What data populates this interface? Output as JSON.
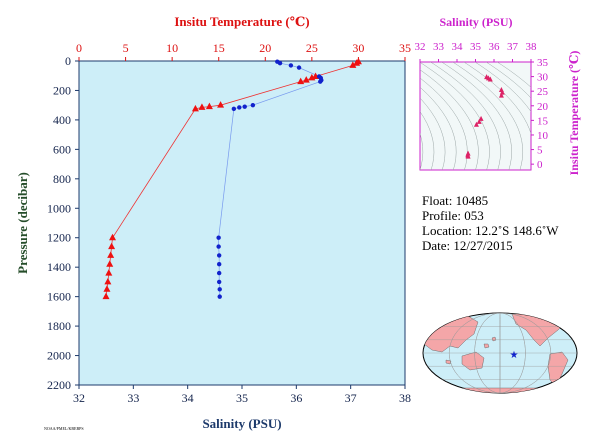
{
  "chart_data": [
    {
      "type": "scatter",
      "top_axis_label": "Insitu Temperature (℃)",
      "bottom_axis_label": "Salinity (PSU)",
      "left_axis_label": "Pressure (decibar)",
      "temperature_ticks": [
        "0",
        "5",
        "10",
        "15",
        "20",
        "25",
        "30",
        "35"
      ],
      "temperature_range": [
        0,
        35
      ],
      "salinity_ticks": [
        "32",
        "33",
        "34",
        "35",
        "36",
        "37",
        "38"
      ],
      "salinity_range": [
        32,
        38
      ],
      "pressure_ticks": [
        "0",
        "200",
        "400",
        "600",
        "800",
        "1000",
        "1200",
        "1400",
        "1600",
        "1800",
        "2000",
        "2200"
      ],
      "pressure_range": [
        0,
        2200
      ],
      "grid": false,
      "series": [
        {
          "marker": "triangle",
          "color": "#ee1111",
          "points": [
            {
              "p": 5,
              "v": 30.0
            },
            {
              "p": 15,
              "v": 29.8
            },
            {
              "p": 30,
              "v": 29.4
            },
            {
              "p": 105,
              "v": 25.4
            },
            {
              "p": 115,
              "v": 25.0
            },
            {
              "p": 130,
              "v": 24.4
            },
            {
              "p": 140,
              "v": 23.8
            },
            {
              "p": 300,
              "v": 15.2
            },
            {
              "p": 310,
              "v": 14.0
            },
            {
              "p": 315,
              "v": 13.2
            },
            {
              "p": 325,
              "v": 12.5
            },
            {
              "p": 1200,
              "v": 3.6
            },
            {
              "p": 1260,
              "v": 3.5
            },
            {
              "p": 1320,
              "v": 3.4
            },
            {
              "p": 1380,
              "v": 3.3
            },
            {
              "p": 1440,
              "v": 3.2
            },
            {
              "p": 1500,
              "v": 3.1
            },
            {
              "p": 1550,
              "v": 3.0
            },
            {
              "p": 1600,
              "v": 2.9
            }
          ]
        },
        {
          "marker": "circle",
          "color": "#1122cc",
          "points": [
            {
              "p": 5,
              "v": 35.65
            },
            {
              "p": 15,
              "v": 35.7
            },
            {
              "p": 30,
              "v": 35.9
            },
            {
              "p": 45,
              "v": 36.05
            },
            {
              "p": 105,
              "v": 36.42
            },
            {
              "p": 115,
              "v": 36.45
            },
            {
              "p": 130,
              "v": 36.46
            },
            {
              "p": 140,
              "v": 36.44
            },
            {
              "p": 300,
              "v": 35.2
            },
            {
              "p": 310,
              "v": 35.05
            },
            {
              "p": 315,
              "v": 34.95
            },
            {
              "p": 325,
              "v": 34.85
            },
            {
              "p": 1200,
              "v": 34.57
            },
            {
              "p": 1260,
              "v": 34.57
            },
            {
              "p": 1320,
              "v": 34.58
            },
            {
              "p": 1380,
              "v": 34.58
            },
            {
              "p": 1440,
              "v": 34.58
            },
            {
              "p": 1500,
              "v": 34.58
            },
            {
              "p": 1550,
              "v": 34.59
            },
            {
              "p": 1600,
              "v": 34.59
            }
          ]
        }
      ]
    },
    {
      "type": "scatter",
      "top_axis_label": "Salinity (PSU)",
      "right_axis_label": "Insitu Temperature (℃)",
      "salinity_ticks": [
        "32",
        "33",
        "34",
        "35",
        "36",
        "37",
        "38"
      ],
      "salinity_range": [
        32,
        38
      ],
      "temperature_ticks": [
        "0",
        "5",
        "10",
        "15",
        "20",
        "25",
        "30",
        "35"
      ],
      "temperature_range": [
        -2,
        35
      ],
      "points": [
        {
          "s": 35.6,
          "t": 29.8
        },
        {
          "s": 35.7,
          "t": 29.4
        },
        {
          "s": 35.8,
          "t": 29.0
        },
        {
          "s": 36.4,
          "t": 25.4
        },
        {
          "s": 36.45,
          "t": 24.5
        },
        {
          "s": 36.4,
          "t": 23.5
        },
        {
          "s": 35.3,
          "t": 15.5
        },
        {
          "s": 35.2,
          "t": 14.5
        },
        {
          "s": 35.05,
          "t": 13.5
        },
        {
          "s": 34.6,
          "t": 3.6
        },
        {
          "s": 34.58,
          "t": 3.0
        },
        {
          "s": 34.6,
          "t": 2.6
        }
      ]
    }
  ],
  "float_info": {
    "float": "Float:  10485",
    "profile": "Profile:  053",
    "location": "Location:  12.2˚S  148.6˚W",
    "date": "Date:  12/27/2015"
  },
  "credit": "NOAA/PMEL/KBEBPS",
  "colors": {
    "plot_bg": "#cdeef8",
    "temperature": "#ee1111",
    "salinity": "#1122cc",
    "ts_axis": "#cc22cc",
    "land": "#f4a6a8",
    "ocean": "#cdeef8"
  }
}
